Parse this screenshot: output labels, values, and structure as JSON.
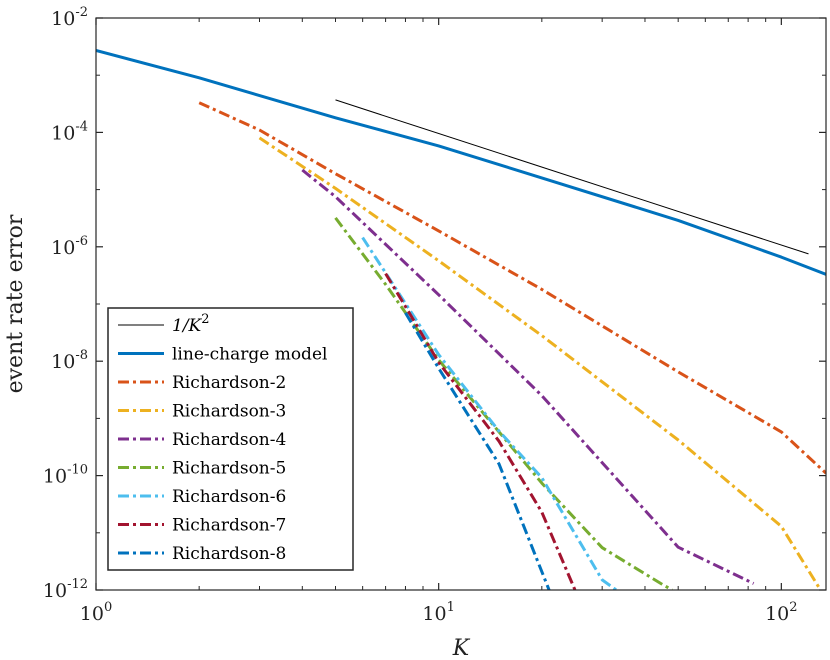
{
  "chart_data": {
    "type": "line",
    "title": "",
    "xlabel": "K",
    "ylabel": "event rate error",
    "xscale": "log",
    "yscale": "log",
    "xlim": [
      1,
      135
    ],
    "ylim": [
      1e-12,
      0.01
    ],
    "xticks": [
      {
        "value": 1,
        "base": "10",
        "exp": "0"
      },
      {
        "value": 10,
        "base": "10",
        "exp": "1"
      },
      {
        "value": 100,
        "base": "10",
        "exp": "2"
      }
    ],
    "yticks": [
      {
        "value": 1e-12,
        "base": "10",
        "exp": "-12"
      },
      {
        "value": 1e-10,
        "base": "10",
        "exp": "-10"
      },
      {
        "value": 1e-08,
        "base": "10",
        "exp": "-8"
      },
      {
        "value": 1e-06,
        "base": "10",
        "exp": "-6"
      },
      {
        "value": 0.0001,
        "base": "10",
        "exp": "-4"
      },
      {
        "value": 0.01,
        "base": "10",
        "exp": "-2"
      }
    ],
    "grid": false,
    "legend_position": "bottom-left",
    "series": [
      {
        "name": "1/K²",
        "legend_main": "1/K",
        "legend_exp": "2",
        "color": "#000000",
        "style": "thin-solid",
        "x": [
          5,
          120
        ],
        "y": [
          0.00037,
          7.5e-07
        ]
      },
      {
        "name": "line-charge model",
        "color": "#0072BD",
        "style": "solid",
        "x": [
          1,
          2,
          5,
          10,
          20,
          50,
          100,
          135
        ],
        "y": [
          0.0027,
          0.0009,
          0.00018,
          5.8e-05,
          1.6e-05,
          2.9e-06,
          6.6e-07,
          3.3e-07
        ]
      },
      {
        "name": "Richardson-2",
        "color": "#D95319",
        "style": "dash-dot",
        "x": [
          2,
          3,
          5,
          10,
          20,
          50,
          100,
          135
        ],
        "y": [
          0.00033,
          0.00011,
          1.9e-05,
          1.9e-06,
          1.8e-07,
          6.5e-09,
          5.8e-10,
          1.1e-10
        ]
      },
      {
        "name": "Richardson-3",
        "color": "#EDB120",
        "style": "dash-dot",
        "x": [
          3,
          5,
          10,
          20,
          50,
          100,
          135
        ],
        "y": [
          8e-05,
          1.05e-05,
          5.7e-07,
          2.8e-08,
          4.2e-10,
          1.3e-11,
          7e-13
        ]
      },
      {
        "name": "Richardson-4",
        "color": "#7E2F8E",
        "style": "dash-dot",
        "x": [
          4,
          5,
          10,
          20,
          50,
          83
        ],
        "y": [
          2.2e-05,
          7.5e-06,
          1.45e-07,
          2.5e-09,
          5.6e-12,
          1.3e-12
        ]
      },
      {
        "name": "Richardson-5",
        "color": "#77AC30",
        "style": "dash-dot",
        "x": [
          5,
          7,
          10,
          15,
          20,
          30,
          45,
          48
        ],
        "y": [
          3.2e-06,
          2.2e-07,
          1.05e-08,
          5.8e-10,
          7.4e-11,
          5.5e-12,
          1.25e-12,
          1e-12
        ]
      },
      {
        "name": "Richardson-6",
        "color": "#4DBEEE",
        "style": "dash-dot",
        "x": [
          6,
          7,
          10,
          15,
          20,
          30,
          33
        ],
        "y": [
          1.45e-06,
          3.5e-07,
          1.3e-08,
          6e-10,
          9.2e-11,
          1.5e-12,
          1e-12
        ]
      },
      {
        "name": "Richardson-7",
        "color": "#A2142F",
        "style": "dash-dot",
        "x": [
          7,
          8,
          10,
          15,
          20,
          25
        ],
        "y": [
          3.4e-07,
          9e-08,
          9.5e-09,
          4e-10,
          2.3e-11,
          1e-12
        ]
      },
      {
        "name": "Richardson-8",
        "color": "#0072BD",
        "style": "dash-dot",
        "x": [
          8,
          10,
          15,
          21
        ],
        "y": [
          7e-08,
          7.5e-09,
          1.6e-10,
          1e-12
        ]
      }
    ]
  }
}
